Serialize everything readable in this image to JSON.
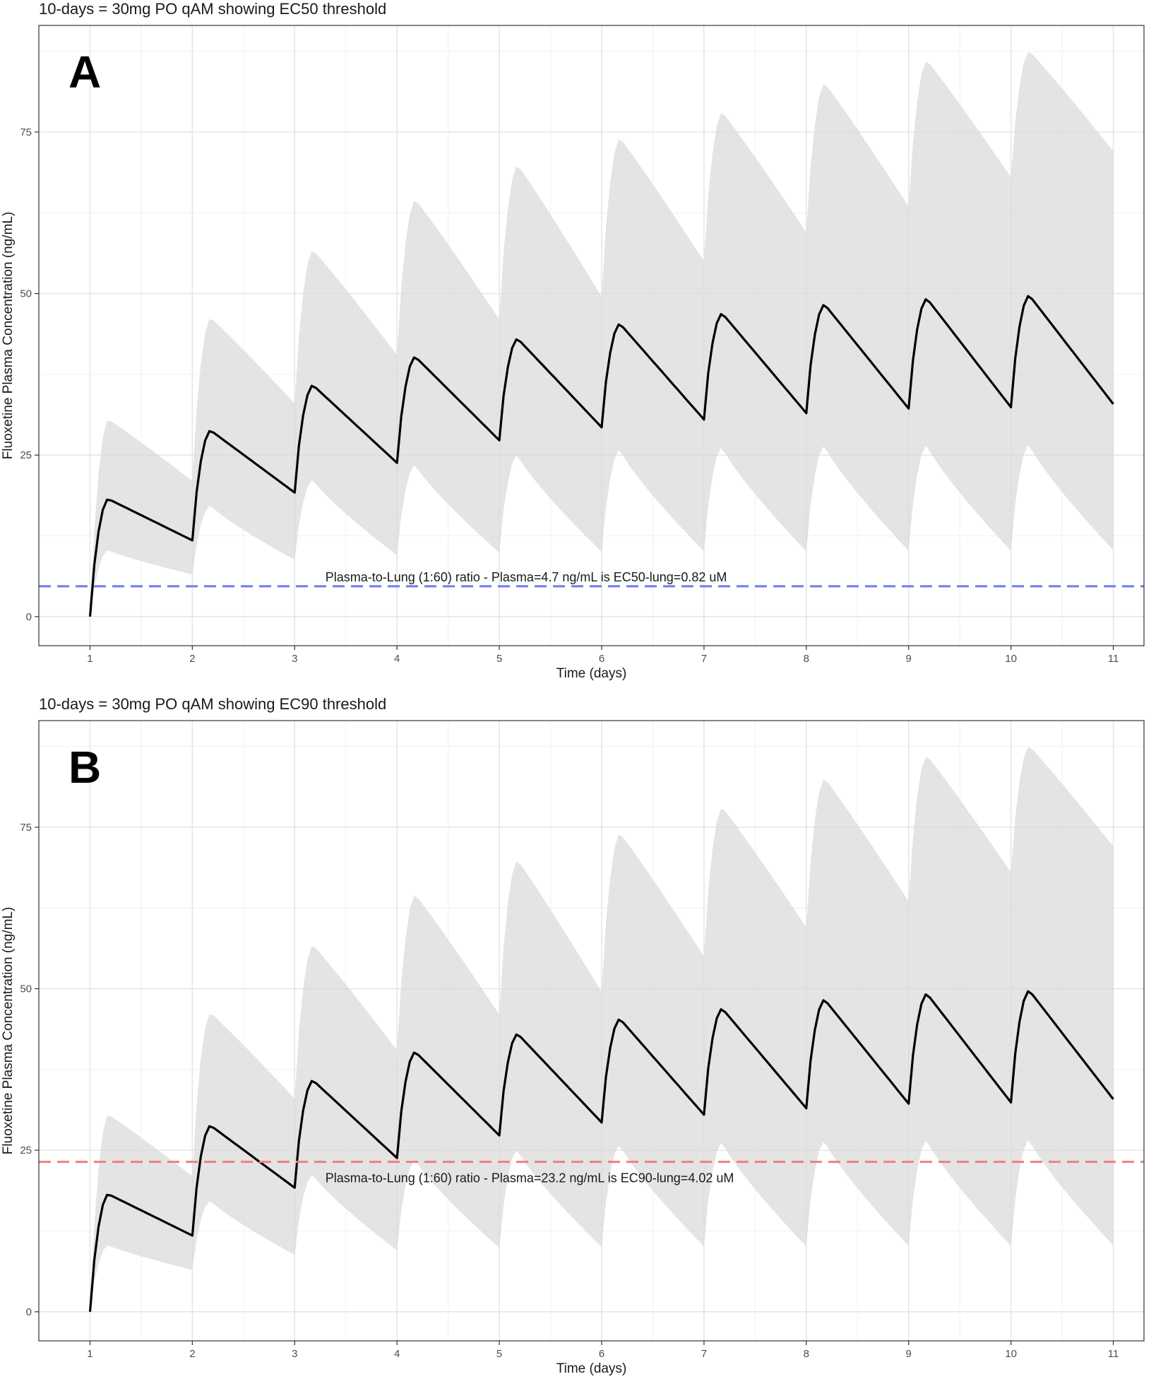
{
  "chart_data": [
    {
      "type": "line",
      "title": "10-days = 30mg PO qAM showing EC50 threshold",
      "panel_label": "A",
      "xlabel": "Time (days)",
      "ylabel": "Fluoxetine Plasma Concentration (ng/mL)",
      "xlim": [
        0.5,
        11.3
      ],
      "ylim": [
        -4.5,
        91.5
      ],
      "xticks": [
        1,
        2,
        3,
        4,
        5,
        6,
        7,
        8,
        9,
        10,
        11
      ],
      "yticks": [
        0,
        25,
        50,
        75
      ],
      "grid": true,
      "series": [
        {
          "name": "median",
          "days": [
            1,
            2,
            3,
            4,
            5,
            6,
            7,
            8,
            9,
            10
          ],
          "peaks": [
            18.2,
            28.8,
            35.8,
            40.2,
            43.0,
            45.3,
            46.9,
            48.3,
            49.2,
            49.7
          ],
          "troughs": [
            11.8,
            19.2,
            23.8,
            27.3,
            29.3,
            30.5,
            31.5,
            32.2,
            32.4,
            32.9
          ]
        },
        {
          "name": "90% prediction interval",
          "upper_peaks": [
            30.5,
            46.2,
            56.7,
            64.5,
            69.8,
            74.0,
            78.0,
            82.5,
            86.0,
            87.5
          ],
          "upper_troughs": [
            21.0,
            33.0,
            40.5,
            46.0,
            49.5,
            55.0,
            59.5,
            63.5,
            68.0,
            72.0
          ],
          "lower_peaks": [
            10.3,
            17.2,
            21.2,
            23.5,
            25.0,
            25.8,
            26.2,
            26.4,
            26.5,
            26.6
          ],
          "lower_troughs": [
            6.5,
            8.8,
            9.5,
            9.9,
            10.0,
            10.1,
            10.1,
            10.2,
            10.2,
            10.3
          ]
        }
      ],
      "threshold": {
        "value": 4.7,
        "color": "#6b7cf5",
        "label": "Plasma-to-Lung (1:60) ratio - Plasma=4.7 ng/mL is EC50-lung=0.82 uM",
        "label_side": "above"
      }
    },
    {
      "type": "line",
      "title": "10-days = 30mg PO qAM showing EC90 threshold",
      "panel_label": "B",
      "xlabel": "Time (days)",
      "ylabel": "Fluoxetine Plasma Concentration (ng/mL)",
      "xlim": [
        0.5,
        11.3
      ],
      "ylim": [
        -4.5,
        91.5
      ],
      "xticks": [
        1,
        2,
        3,
        4,
        5,
        6,
        7,
        8,
        9,
        10,
        11
      ],
      "yticks": [
        0,
        25,
        50,
        75
      ],
      "grid": true,
      "series": [
        {
          "name": "median",
          "days": [
            1,
            2,
            3,
            4,
            5,
            6,
            7,
            8,
            9,
            10
          ],
          "peaks": [
            18.2,
            28.8,
            35.8,
            40.2,
            43.0,
            45.3,
            46.9,
            48.3,
            49.2,
            49.7
          ],
          "troughs": [
            11.8,
            19.2,
            23.8,
            27.3,
            29.3,
            30.5,
            31.5,
            32.2,
            32.4,
            32.9
          ]
        },
        {
          "name": "90% prediction interval",
          "upper_peaks": [
            30.5,
            46.2,
            56.7,
            64.5,
            69.8,
            74.0,
            78.0,
            82.5,
            86.0,
            87.5
          ],
          "upper_troughs": [
            21.0,
            33.0,
            40.5,
            46.0,
            49.5,
            55.0,
            59.5,
            63.5,
            68.0,
            72.0
          ],
          "lower_peaks": [
            10.3,
            17.2,
            21.2,
            23.5,
            25.0,
            25.8,
            26.2,
            26.4,
            26.5,
            26.6
          ],
          "lower_troughs": [
            6.5,
            8.8,
            9.5,
            9.9,
            10.0,
            10.1,
            10.1,
            10.2,
            10.2,
            10.3
          ]
        }
      ],
      "threshold": {
        "value": 23.2,
        "color": "#f07f7f",
        "label": "Plasma-to-Lung (1:60) ratio - Plasma=23.2 ng/mL is EC90-lung=4.02 uM",
        "label_side": "below"
      }
    }
  ]
}
